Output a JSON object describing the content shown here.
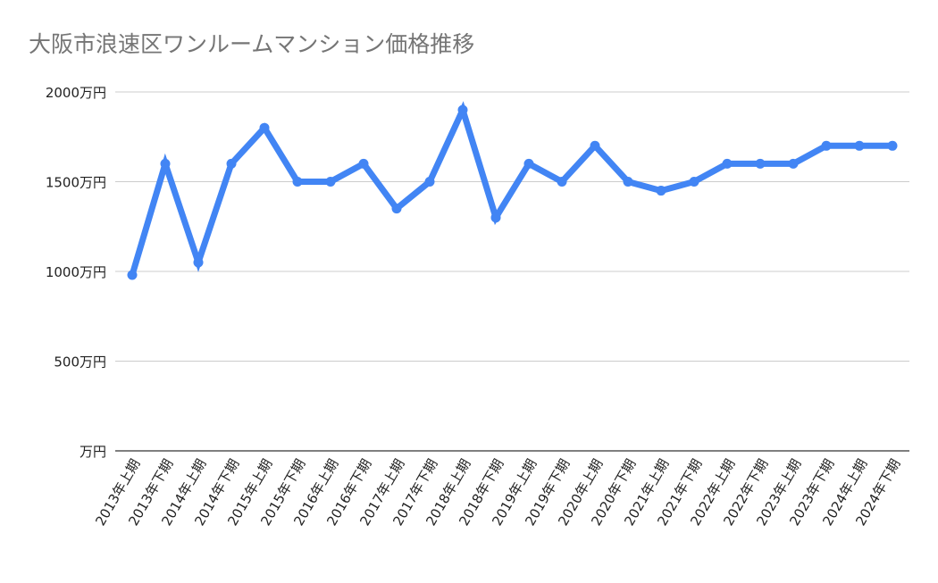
{
  "chart_data": {
    "type": "line",
    "title": "大阪市浪速区ワンルームマンション価格推移",
    "xlabel": "",
    "ylabel": "",
    "categories": [
      "2013年上期",
      "2013年下期",
      "2014年上期",
      "2014年下期",
      "2015年上期",
      "2015年下期",
      "2016年上期",
      "2016年下期",
      "2017年上期",
      "2017年下期",
      "2018年上期",
      "2018年下期",
      "2019年上期",
      "2019年下期",
      "2020年上期",
      "2020年下期",
      "2021年上期",
      "2021年下期",
      "2022年上期",
      "2022年下期",
      "2023年上期",
      "2023年下期",
      "2024年上期",
      "2024年下期"
    ],
    "series": [
      {
        "values": [
          980,
          1600,
          1050,
          1600,
          1800,
          1500,
          1500,
          1600,
          1350,
          1500,
          1900,
          1300,
          1600,
          1500,
          1700,
          1500,
          1450,
          1500,
          1600,
          1600,
          1600,
          1700,
          1700,
          1700
        ]
      }
    ],
    "ylim": [
      0,
      2000
    ],
    "yticks": [
      {
        "value": 0,
        "label": "万円"
      },
      {
        "value": 500,
        "label": "500万円"
      },
      {
        "value": 1000,
        "label": "1000万円"
      },
      {
        "value": 1500,
        "label": "1500万円"
      },
      {
        "value": 2000,
        "label": "2000万円"
      }
    ],
    "grid": true,
    "legend": "none",
    "colors": {
      "line": "#4285f4",
      "grid": "#cccccc",
      "axis": "#333333",
      "title": "#757575",
      "tick": "#222222"
    }
  }
}
